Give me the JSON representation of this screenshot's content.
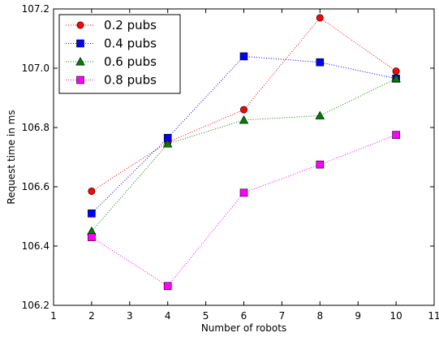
{
  "chart_data": {
    "type": "line",
    "title": "",
    "xlabel": "Number of robots",
    "ylabel": "Request time in ms",
    "xlim": [
      1,
      11
    ],
    "ylim": [
      106.2,
      107.2
    ],
    "x_ticks": [
      1,
      2,
      3,
      4,
      5,
      6,
      7,
      8,
      9,
      10,
      11
    ],
    "x_tick_labels": [
      "1",
      "2",
      "3",
      "4",
      "5",
      "6",
      "7",
      "8",
      "9",
      "10",
      "11"
    ],
    "y_ticks": [
      106.2,
      106.4,
      106.6,
      106.8,
      107.0,
      107.2
    ],
    "y_tick_labels": [
      "106.2",
      "106.4",
      "106.6",
      "106.8",
      "107.0",
      "107.2"
    ],
    "grid": false,
    "legend_position": "top-left",
    "x": [
      2,
      4,
      6,
      8,
      10
    ],
    "series": [
      {
        "name": "0.2 pubs",
        "color": "#ff0000",
        "marker": "circle",
        "line_style": "dotted",
        "values": [
          106.585,
          106.75,
          106.86,
          107.17,
          106.99
        ]
      },
      {
        "name": "0.4 pubs",
        "color": "#0000ff",
        "marker": "square",
        "line_style": "dotted",
        "values": [
          106.51,
          106.765,
          107.04,
          107.02,
          106.965
        ]
      },
      {
        "name": "0.6 pubs",
        "color": "#008000",
        "marker": "triangle",
        "line_style": "dotted",
        "values": [
          106.45,
          106.745,
          106.825,
          106.84,
          106.965
        ]
      },
      {
        "name": "0.8 pubs",
        "color": "#ff00ff",
        "marker": "square",
        "line_style": "dotted",
        "values": [
          106.43,
          106.265,
          106.58,
          106.675,
          106.775
        ]
      }
    ]
  }
}
